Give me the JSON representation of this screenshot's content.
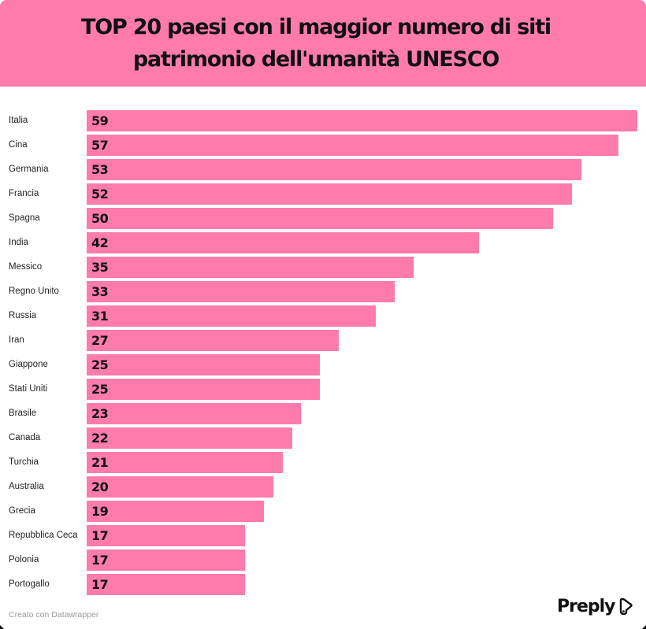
{
  "header": {
    "title_line1": "TOP 20 paesi con il maggior numero di siti",
    "title_line2": "patrimonio dell'umanità UNESCO",
    "bg_color": "#ff7bac"
  },
  "footer": {
    "credit": "Creato con Datawrapper",
    "brand": "Preply"
  },
  "chart_data": {
    "type": "bar",
    "orientation": "horizontal",
    "title": "TOP 20 paesi con il maggior numero di siti patrimonio dell'umanità UNESCO",
    "xlabel": "",
    "ylabel": "",
    "grid": false,
    "legend": null,
    "bar_color": "#ff7bac",
    "value_labels": "inside-left",
    "xlim": [
      0,
      59
    ],
    "categories": [
      "Italia",
      "Cina",
      "Germania",
      "Francia",
      "Spagna",
      "India",
      "Messico",
      "Regno Unito",
      "Russia",
      "Iran",
      "Giappone",
      "Stati Uniti",
      "Brasile",
      "Canada",
      "Turchia",
      "Australia",
      "Grecia",
      "Repubblica Ceca",
      "Polonia",
      "Portogallo"
    ],
    "values": [
      59,
      57,
      53,
      52,
      50,
      42,
      35,
      33,
      31,
      27,
      25,
      25,
      23,
      22,
      21,
      20,
      19,
      17,
      17,
      17
    ]
  }
}
